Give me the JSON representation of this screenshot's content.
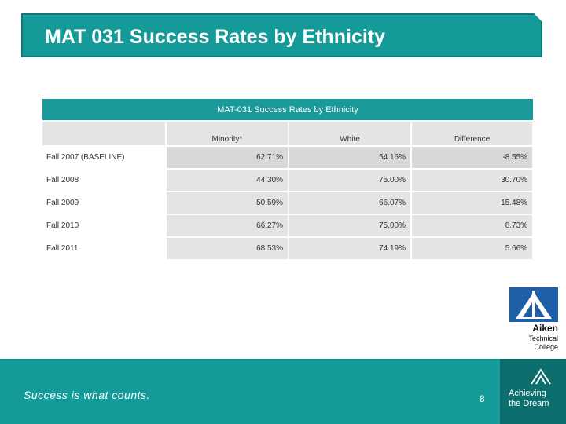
{
  "slide": {
    "title": "MAT 031 Success Rates by Ethnicity",
    "slogan": "Success is what counts.",
    "page_number": "8"
  },
  "table": {
    "caption": "MAT-031 Success Rates by Ethnicity",
    "columns": [
      "",
      "Minority*",
      "White",
      "Difference"
    ],
    "rows": [
      {
        "label": "Fall 2007 (BASELINE)",
        "minority": "62.71%",
        "white": "54.16%",
        "difference": "-8.55%"
      },
      {
        "label": "Fall 2008",
        "minority": "44.30%",
        "white": "75.00%",
        "difference": "30.70%"
      },
      {
        "label": "Fall 2009",
        "minority": "50.59%",
        "white": "66.07%",
        "difference": "15.48%"
      },
      {
        "label": "Fall 2010",
        "minority": "66.27%",
        "white": "75.00%",
        "difference": "8.73%"
      },
      {
        "label": "Fall 2011",
        "minority": "68.53%",
        "white": "74.19%",
        "difference": "5.66%"
      }
    ]
  },
  "logos": {
    "aiken_line1": "Aiken",
    "aiken_line2": "Technical",
    "aiken_line3": "College",
    "atd_line1": "Achieving",
    "atd_line2": "the Dream"
  },
  "colors": {
    "accent": "#159a9a",
    "dark_accent": "#0d6e6e"
  }
}
